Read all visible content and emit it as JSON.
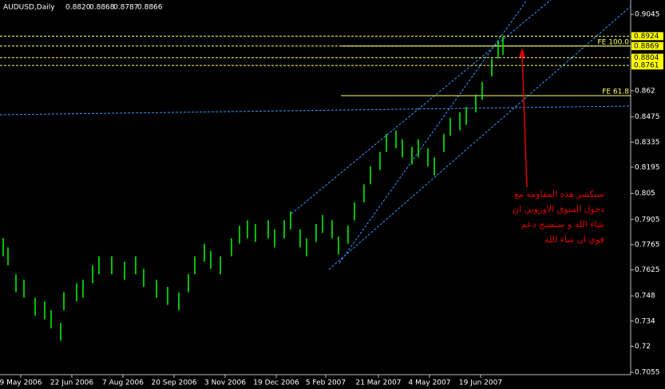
{
  "chart_data": {
    "type": "ohlc",
    "symbol": "AUDUSD,Daily",
    "quote": [
      "0.8820",
      "0.8868",
      "0.8787",
      "0.8866"
    ],
    "color": "#00ff00",
    "x": [
      2,
      5,
      10,
      15,
      22,
      28,
      32,
      38,
      40,
      48,
      52,
      58,
      62,
      70,
      78,
      85,
      90,
      98,
      105,
      112,
      118,
      122,
      128,
      132,
      138,
      145,
      150,
      155,
      160,
      168,
      172,
      178,
      182,
      188,
      192,
      198,
      202,
      208,
      212,
      218,
      222,
      228,
      232,
      238,
      242,
      248,
      252,
      258,
      262,
      268,
      272,
      278,
      282,
      288,
      292,
      298,
      302,
      308,
      312,
      315
    ],
    "high": [
      0.78,
      0.775,
      0.76,
      0.757,
      0.747,
      0.745,
      0.74,
      0.733,
      0.75,
      0.755,
      0.757,
      0.765,
      0.77,
      0.77,
      0.767,
      0.77,
      0.763,
      0.757,
      0.753,
      0.75,
      0.76,
      0.77,
      0.777,
      0.773,
      0.77,
      0.78,
      0.787,
      0.79,
      0.788,
      0.79,
      0.785,
      0.79,
      0.795,
      0.785,
      0.78,
      0.788,
      0.793,
      0.79,
      0.781,
      0.787,
      0.8,
      0.81,
      0.82,
      0.828,
      0.838,
      0.84,
      0.835,
      0.831,
      0.835,
      0.83,
      0.825,
      0.838,
      0.847,
      0.85,
      0.853,
      0.86,
      0.867,
      0.88,
      0.89,
      0.892
    ],
    "low": [
      0.77,
      0.765,
      0.75,
      0.747,
      0.737,
      0.735,
      0.73,
      0.723,
      0.74,
      0.745,
      0.747,
      0.755,
      0.76,
      0.76,
      0.757,
      0.76,
      0.753,
      0.747,
      0.743,
      0.74,
      0.75,
      0.76,
      0.767,
      0.763,
      0.76,
      0.77,
      0.777,
      0.78,
      0.778,
      0.78,
      0.775,
      0.78,
      0.785,
      0.775,
      0.77,
      0.778,
      0.783,
      0.78,
      0.771,
      0.777,
      0.79,
      0.8,
      0.81,
      0.818,
      0.828,
      0.83,
      0.825,
      0.821,
      0.825,
      0.82,
      0.815,
      0.828,
      0.837,
      0.84,
      0.843,
      0.85,
      0.857,
      0.87,
      0.88,
      0.882
    ],
    "xlim": [
      0,
      395
    ],
    "ylim": [
      0.7042,
      0.9125
    ],
    "xticks": [
      {
        "value": 13,
        "label": "9 May 2006"
      },
      {
        "value": 45,
        "label": "22 Jun 2006"
      },
      {
        "value": 77,
        "label": "7 Aug 2006"
      },
      {
        "value": 109,
        "label": "20 Sep 2006"
      },
      {
        "value": 141,
        "label": "3 Nov 2006"
      },
      {
        "value": 173,
        "label": "19 Dec 2006"
      },
      {
        "value": 204,
        "label": "5 Feb 2007"
      },
      {
        "value": 237,
        "label": "21 Mar 2007"
      },
      {
        "value": 269,
        "label": "4 May 2007"
      },
      {
        "value": 301,
        "label": "19 Jun 2007"
      }
    ],
    "yticks": [
      0.9045,
      0.862,
      0.8475,
      0.8335,
      0.8195,
      0.805,
      0.7905,
      0.7765,
      0.7625,
      0.748,
      0.734,
      0.72,
      0.7055
    ],
    "price_levels": [
      0.8924,
      0.8869,
      0.8804,
      0.8761
    ],
    "fib_levels": [
      {
        "name": "FE 100.0",
        "value": 0.8869
      },
      {
        "name": "FE 61.8",
        "value": 0.8593
      }
    ],
    "annotation": [
      "ستكسر هذه المقاومه مع",
      "دخول السوق الاوروبي ان",
      "شاء الله و ستصبح دعم",
      "قوي ان شاء الله"
    ]
  }
}
